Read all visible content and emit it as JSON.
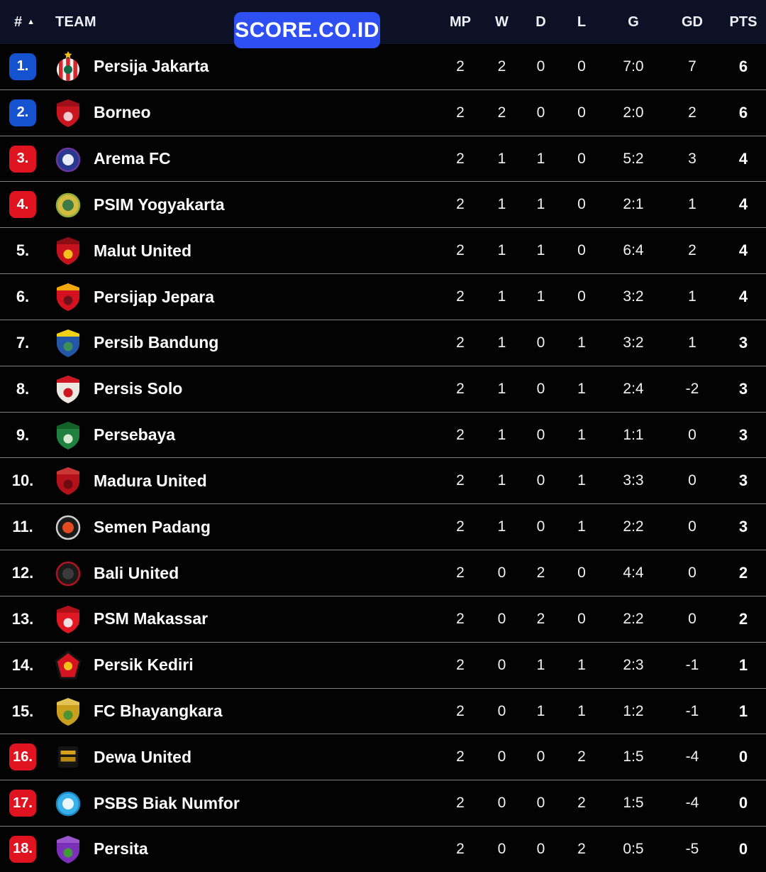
{
  "watermark": {
    "label": "SCORE.CO.ID"
  },
  "colors": {
    "header_bg": "#0c1126",
    "row_bg": "#030303",
    "row_separator": "rgba(255,255,255,0.5)",
    "badge_blue": "#1552d0",
    "badge_red": "#e01420",
    "watermark_bg": "#2e4ff2"
  },
  "table": {
    "header": {
      "rank_label": "#",
      "sort_icon": "▲",
      "team_label": "TEAM",
      "stat_labels": [
        "MP",
        "W",
        "D",
        "L",
        "G",
        "GD",
        "PTS"
      ]
    },
    "rows": [
      {
        "rank": "1.",
        "badge": "blue",
        "team": "Persija Jakarta",
        "logo": {
          "shape": "striped-circle",
          "c1": "#f2f2f2",
          "c2": "#d6252b",
          "c3": "#0e6b46",
          "star": "#f2c218"
        },
        "stats": [
          "2",
          "2",
          "0",
          "0",
          "7:0",
          "7",
          "6"
        ]
      },
      {
        "rank": "2.",
        "badge": "blue",
        "team": "Borneo",
        "logo": {
          "shape": "shield",
          "c1": "#c9151f",
          "c2": "#9d1019",
          "c3": "#f2c9ce"
        },
        "stats": [
          "2",
          "2",
          "0",
          "0",
          "2:0",
          "2",
          "6"
        ]
      },
      {
        "rank": "3.",
        "badge": "red",
        "team": "Arema FC",
        "logo": {
          "shape": "circle",
          "c1": "#27388f",
          "c2": "#6a35a0",
          "c3": "#e8ecf8"
        },
        "stats": [
          "2",
          "1",
          "1",
          "0",
          "5:2",
          "3",
          "4"
        ]
      },
      {
        "rank": "4.",
        "badge": "red",
        "team": "PSIM Yogyakarta",
        "logo": {
          "shape": "circle",
          "c1": "#d3bc3f",
          "c2": "#8fae3c",
          "c3": "#3d7a46"
        },
        "stats": [
          "2",
          "1",
          "1",
          "0",
          "2:1",
          "1",
          "4"
        ]
      },
      {
        "rank": "5.",
        "badge": "none",
        "team": "Malut United",
        "logo": {
          "shape": "shield",
          "c1": "#c5121d",
          "c2": "#8d0d14",
          "c3": "#f2c11d"
        },
        "stats": [
          "2",
          "1",
          "1",
          "0",
          "6:4",
          "2",
          "4"
        ]
      },
      {
        "rank": "6.",
        "badge": "none",
        "team": "Persijap Jepara",
        "logo": {
          "shape": "shield",
          "c1": "#d4121f",
          "c2": "#f0a80c",
          "c3": "#70101a"
        },
        "stats": [
          "2",
          "1",
          "1",
          "0",
          "3:2",
          "1",
          "4"
        ]
      },
      {
        "rank": "7.",
        "badge": "none",
        "team": "Persib Bandung",
        "logo": {
          "shape": "shield",
          "c1": "#2456a8",
          "c2": "#f2d018",
          "c3": "#3d8f5a"
        },
        "stats": [
          "2",
          "1",
          "0",
          "1",
          "3:2",
          "1",
          "3"
        ]
      },
      {
        "rank": "8.",
        "badge": "none",
        "team": "Persis Solo",
        "logo": {
          "shape": "shield",
          "c1": "#ece8df",
          "c2": "#cf1522",
          "c3": "#cf1522"
        },
        "stats": [
          "2",
          "1",
          "0",
          "1",
          "2:4",
          "-2",
          "3"
        ]
      },
      {
        "rank": "9.",
        "badge": "none",
        "team": "Persebaya",
        "logo": {
          "shape": "shield",
          "c1": "#1f8040",
          "c2": "#136028",
          "c3": "#d9e8cf"
        },
        "stats": [
          "2",
          "1",
          "0",
          "1",
          "1:1",
          "0",
          "3"
        ]
      },
      {
        "rank": "10.",
        "badge": "none",
        "team": "Madura United",
        "logo": {
          "shape": "shield",
          "c1": "#b3101a",
          "c2": "#c93636",
          "c3": "#6e0a10"
        },
        "stats": [
          "2",
          "1",
          "0",
          "1",
          "3:3",
          "0",
          "3"
        ]
      },
      {
        "rank": "11.",
        "badge": "none",
        "team": "Semen Padang",
        "logo": {
          "shape": "circle",
          "c1": "#1b1b1b",
          "c2": "#cfcfcf",
          "c3": "#e4491f"
        },
        "stats": [
          "2",
          "1",
          "0",
          "1",
          "2:2",
          "0",
          "3"
        ]
      },
      {
        "rank": "12.",
        "badge": "none",
        "team": "Bali United",
        "logo": {
          "shape": "circle",
          "c1": "#1a1a1a",
          "c2": "#b01320",
          "c3": "#3a3a3a"
        },
        "stats": [
          "2",
          "0",
          "2",
          "0",
          "4:4",
          "0",
          "2"
        ]
      },
      {
        "rank": "13.",
        "badge": "none",
        "team": "PSM Makassar",
        "logo": {
          "shape": "shield",
          "c1": "#df1824",
          "c2": "#b21019",
          "c3": "#f2dfe0"
        },
        "stats": [
          "2",
          "0",
          "2",
          "0",
          "2:2",
          "0",
          "2"
        ]
      },
      {
        "rank": "14.",
        "badge": "none",
        "team": "Persik Kediri",
        "logo": {
          "shape": "pentagon",
          "c1": "#d41420",
          "c2": "#141414",
          "c3": "#f2c21a"
        },
        "stats": [
          "2",
          "0",
          "1",
          "1",
          "2:3",
          "-1",
          "1"
        ]
      },
      {
        "rank": "15.",
        "badge": "none",
        "team": "FC Bhayangkara",
        "logo": {
          "shape": "shield",
          "c1": "#c9a01d",
          "c2": "#e4c253",
          "c3": "#4f9430"
        },
        "stats": [
          "2",
          "0",
          "1",
          "1",
          "1:2",
          "-1",
          "1"
        ]
      },
      {
        "rank": "16.",
        "badge": "red",
        "team": "Dewa United",
        "logo": {
          "shape": "square",
          "c1": "#151515",
          "c2": "#d8a31b",
          "c3": "#b8880f"
        },
        "stats": [
          "2",
          "0",
          "0",
          "2",
          "1:5",
          "-4",
          "0"
        ]
      },
      {
        "rank": "17.",
        "badge": "red",
        "team": "PSBS Biak Numfor",
        "logo": {
          "shape": "circle",
          "c1": "#39b2ea",
          "c2": "#1d86c0",
          "c3": "#eaf6fd"
        },
        "stats": [
          "2",
          "0",
          "0",
          "2",
          "1:5",
          "-4",
          "0"
        ]
      },
      {
        "rank": "18.",
        "badge": "red",
        "team": "Persita",
        "logo": {
          "shape": "shield",
          "c1": "#7c2fb8",
          "c2": "#9a55cc",
          "c3": "#3f9b35"
        },
        "stats": [
          "2",
          "0",
          "0",
          "2",
          "0:5",
          "-5",
          "0"
        ]
      }
    ]
  }
}
